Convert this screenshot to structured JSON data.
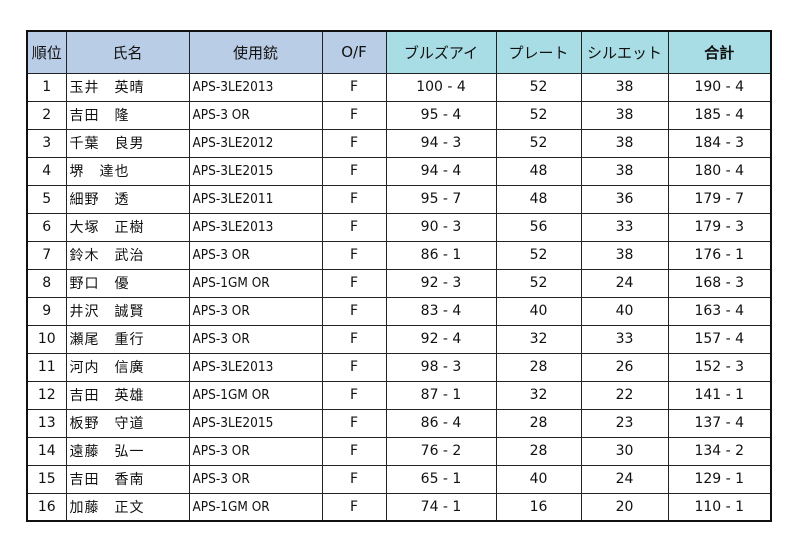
{
  "headers": {
    "rank": "順位",
    "name": "氏名",
    "gun": "使用銃",
    "of": "O/F",
    "bullseye": "ブルズアイ",
    "plate": "プレート",
    "silhouette": "シルエット",
    "total": "合計"
  },
  "colors": {
    "header_blue": "#b9cde6",
    "header_teal": "#a9dde6"
  },
  "rows": [
    {
      "rank": "1",
      "name": "玉井　英晴",
      "gun": "APS-3LE2013",
      "of": "F",
      "bullseye": "100 - 4",
      "plate": "52",
      "silhouette": "38",
      "total": "190 - 4"
    },
    {
      "rank": "2",
      "name": "吉田　隆",
      "gun": "APS-3 OR",
      "of": "F",
      "bullseye": "95 - 4",
      "plate": "52",
      "silhouette": "38",
      "total": "185 - 4"
    },
    {
      "rank": "3",
      "name": "千葉　良男",
      "gun": "APS-3LE2012",
      "of": "F",
      "bullseye": "94 - 3",
      "plate": "52",
      "silhouette": "38",
      "total": "184 - 3"
    },
    {
      "rank": "4",
      "name": "堺　達也",
      "gun": "APS-3LE2015",
      "of": "F",
      "bullseye": "94 - 4",
      "plate": "48",
      "silhouette": "38",
      "total": "180 - 4"
    },
    {
      "rank": "5",
      "name": "細野　透",
      "gun": "APS-3LE2011",
      "of": "F",
      "bullseye": "95 - 7",
      "plate": "48",
      "silhouette": "36",
      "total": "179 - 7"
    },
    {
      "rank": "6",
      "name": "大塚　正樹",
      "gun": "APS-3LE2013",
      "of": "F",
      "bullseye": "90 - 3",
      "plate": "56",
      "silhouette": "33",
      "total": "179 - 3"
    },
    {
      "rank": "7",
      "name": "鈴木　武治",
      "gun": "APS-3 OR",
      "of": "F",
      "bullseye": "86 - 1",
      "plate": "52",
      "silhouette": "38",
      "total": "176 - 1"
    },
    {
      "rank": "8",
      "name": "野口　優",
      "gun": "APS-1GM OR",
      "of": "F",
      "bullseye": "92 - 3",
      "plate": "52",
      "silhouette": "24",
      "total": "168 - 3"
    },
    {
      "rank": "9",
      "name": "井沢　誠賢",
      "gun": "APS-3 OR",
      "of": "F",
      "bullseye": "83 - 4",
      "plate": "40",
      "silhouette": "40",
      "total": "163 - 4"
    },
    {
      "rank": "10",
      "name": "瀬尾　重行",
      "gun": "APS-3 OR",
      "of": "F",
      "bullseye": "92 - 4",
      "plate": "32",
      "silhouette": "33",
      "total": "157 - 4"
    },
    {
      "rank": "11",
      "name": "河内　信廣",
      "gun": "APS-3LE2013",
      "of": "F",
      "bullseye": "98 - 3",
      "plate": "28",
      "silhouette": "26",
      "total": "152 - 3"
    },
    {
      "rank": "12",
      "name": "吉田　英雄",
      "gun": "APS-1GM OR",
      "of": "F",
      "bullseye": "87 - 1",
      "plate": "32",
      "silhouette": "22",
      "total": "141 - 1"
    },
    {
      "rank": "13",
      "name": "板野　守道",
      "gun": "APS-3LE2015",
      "of": "F",
      "bullseye": "86 - 4",
      "plate": "28",
      "silhouette": "23",
      "total": "137 - 4"
    },
    {
      "rank": "14",
      "name": "遠藤　弘一",
      "gun": "APS-3 OR",
      "of": "F",
      "bullseye": "76 - 2",
      "plate": "28",
      "silhouette": "30",
      "total": "134 - 2"
    },
    {
      "rank": "15",
      "name": "吉田　香南",
      "gun": "APS-3 OR",
      "of": "F",
      "bullseye": "65 - 1",
      "plate": "40",
      "silhouette": "24",
      "total": "129 - 1"
    },
    {
      "rank": "16",
      "name": "加藤　正文",
      "gun": "APS-1GM OR",
      "of": "F",
      "bullseye": "74 - 1",
      "plate": "16",
      "silhouette": "20",
      "total": "110 - 1"
    }
  ]
}
